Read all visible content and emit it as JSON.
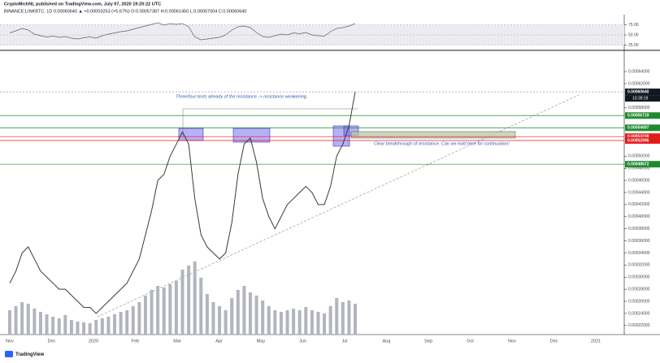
{
  "header": {
    "line1": "CryptoMichNL published on TradingView.com, July 07, 2020 19:20:22 UTC",
    "line2": "BINANCE:LINKBTC, 1D  0.00060640 ▲ +0.00003253 (+5.67%) O:0.00057387 H:0.00061450 L:0.00057004 C:0.00060640"
  },
  "chart_data": [
    {
      "type": "line",
      "color": "#3a3a3a",
      "x_labels": [
        "Nov",
        "Dec",
        "2020",
        "Feb",
        "Mar",
        "Apr",
        "May",
        "Jun",
        "Jul",
        "Aug",
        "Sep",
        "Oct",
        "Nov",
        "Dec",
        "2021"
      ],
      "values": [
        0.00029,
        0.00031,
        0.00034,
        0.00035,
        0.00033,
        0.00031,
        0.0003,
        0.00029,
        0.00028,
        0.00028,
        0.00027,
        0.00026,
        0.00025,
        0.00025,
        0.00024,
        0.00025,
        0.00026,
        0.00027,
        0.00028,
        0.00029,
        0.00031,
        0.00033,
        0.00037,
        0.00041,
        0.00046,
        0.00047,
        0.0005,
        0.00052,
        0.00054,
        0.00052,
        0.00043,
        0.00037,
        0.00035,
        0.00034,
        0.00033,
        0.00034,
        0.00039,
        0.00047,
        0.00052,
        0.00053,
        0.00049,
        0.00043,
        0.0004,
        0.00038,
        0.0004,
        0.00042,
        0.00043,
        0.00044,
        0.00045,
        0.00044,
        0.00042,
        0.00042,
        0.00045,
        0.0005,
        0.00052,
        0.00055,
        0.0006064
      ],
      "volume": [
        30,
        35,
        40,
        38,
        32,
        28,
        25,
        22,
        20,
        24,
        18,
        16,
        15,
        14,
        18,
        20,
        22,
        25,
        28,
        30,
        35,
        40,
        48,
        55,
        60,
        58,
        62,
        66,
        80,
        85,
        90,
        70,
        50,
        40,
        35,
        30,
        45,
        55,
        60,
        52,
        48,
        42,
        35,
        30,
        28,
        30,
        32,
        30,
        34,
        30,
        28,
        26,
        35,
        45,
        40,
        42,
        38
      ],
      "volume_color": "#b2b5be",
      "ylim": [
        0.000205,
        0.000675
      ],
      "yticks": [
        {
          "value": 0.00022,
          "label": "0.00022000"
        },
        {
          "value": 0.00024,
          "label": "0.00024000"
        },
        {
          "value": 0.00026,
          "label": "0.00026000"
        },
        {
          "value": 0.00028,
          "label": "0.00028000"
        },
        {
          "value": 0.0003,
          "label": "0.00030000"
        },
        {
          "value": 0.00032,
          "label": "0.00032000"
        },
        {
          "value": 0.00034,
          "label": "0.00034000"
        },
        {
          "value": 0.00036,
          "label": "0.00036000"
        },
        {
          "value": 0.00038,
          "label": "0.00038000"
        },
        {
          "value": 0.0004,
          "label": "0.00040000"
        },
        {
          "value": 0.00042,
          "label": "0.00042000"
        },
        {
          "value": 0.00044,
          "label": "0.00044000"
        },
        {
          "value": 0.00046,
          "label": "0.00046000"
        },
        {
          "value": 0.00048,
          "label": "0.00048000"
        },
        {
          "value": 0.0005,
          "label": "0.00050000"
        },
        {
          "value": 0.00058,
          "label": "0.00058000"
        },
        {
          "value": 0.00062,
          "label": "0.00062000"
        },
        {
          "value": 0.00064,
          "label": "0.00064000"
        }
      ],
      "price_tags": [
        {
          "value": 0.0006064,
          "label": "0.00060640",
          "color": "#131722"
        },
        {
          "value": 0.00056719,
          "label": "0.00056719",
          "color": "#1e8c2e"
        },
        {
          "value": 0.00054697,
          "label": "0.00054697",
          "color": "#1e8c2e"
        },
        {
          "value": 0.00053238,
          "label": "0.00053238",
          "color": "#e31b1b"
        },
        {
          "value": 0.00052596,
          "label": "0.00052596",
          "color": "#e31b1b"
        },
        {
          "value": 0.00048672,
          "label": "0.00048672",
          "color": "#1e8c2e"
        }
      ],
      "countdown": "10:39:19",
      "annotations": [
        "Three/four tests already of the resistance -> resistance weakening.",
        "Clear breakthrough of resistance. Can we hold here for continuation!"
      ]
    },
    {
      "type": "line",
      "color": "#5d606b",
      "values": [
        55,
        60,
        66,
        62,
        52,
        48,
        45,
        47,
        44,
        46,
        42,
        40,
        43,
        45,
        42,
        48,
        52,
        55,
        58,
        60,
        64,
        68,
        72,
        76,
        80,
        74,
        78,
        76,
        78,
        70,
        45,
        38,
        40,
        42,
        44,
        50,
        62,
        70,
        72,
        68,
        56,
        46,
        44,
        48,
        52,
        50,
        55,
        53,
        56,
        50,
        48,
        47,
        58,
        66,
        68,
        72,
        78
      ],
      "ylim": [
        0,
        100
      ],
      "yticks": [
        {
          "value": 75,
          "label": "75.00"
        },
        {
          "value": 50,
          "label": "50.00"
        },
        {
          "value": 25,
          "label": "25.00"
        }
      ]
    }
  ],
  "footer": "TradingView"
}
